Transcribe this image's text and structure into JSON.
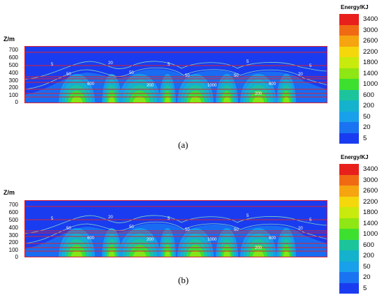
{
  "colors": {
    "deep_blue": "#1a3cf0",
    "contour_line": "#7fd3c4",
    "boundary_line": "#e0202e"
  },
  "chart_data": [
    {
      "type": "heatmap",
      "panel_label": "(a)",
      "ylabel": "Z/m",
      "y_ticks": [
        "700",
        "600",
        "500",
        "400",
        "300",
        "200",
        "100",
        "0"
      ],
      "ylim": [
        0,
        750
      ],
      "legend_title": "Energy/KJ",
      "legend_levels": [
        "3400",
        "3000",
        "2600",
        "2200",
        "1800",
        "1400",
        "1000",
        "600",
        "200",
        "50",
        "20",
        "5"
      ],
      "legend_colors": [
        "#e8201c",
        "#f06a14",
        "#f6a410",
        "#f4d80c",
        "#c8ea0c",
        "#8ee614",
        "#3ee030",
        "#1cc49c",
        "#14b2cc",
        "#18a0ea",
        "#1a74f2",
        "#1a3cf0"
      ],
      "contour_labels": [
        "5",
        "20",
        "50",
        "200",
        "600",
        "1000"
      ]
    },
    {
      "type": "heatmap",
      "panel_label": "(b)",
      "ylabel": "Z/m",
      "y_ticks": [
        "700",
        "600",
        "500",
        "400",
        "300",
        "200",
        "100",
        "0"
      ],
      "ylim": [
        0,
        750
      ],
      "legend_title": "Energy/KJ",
      "legend_levels": [
        "3400",
        "3000",
        "2600",
        "2200",
        "1800",
        "1400",
        "1000",
        "600",
        "200",
        "50",
        "20",
        "5"
      ],
      "legend_colors": [
        "#e8201c",
        "#f06a14",
        "#f6a410",
        "#f4d80c",
        "#c8ea0c",
        "#8ee614",
        "#3ee030",
        "#1cc49c",
        "#14b2cc",
        "#18a0ea",
        "#1a74f2",
        "#1a3cf0"
      ],
      "contour_labels": [
        "5",
        "20",
        "50",
        "200",
        "600",
        "1000"
      ]
    }
  ]
}
